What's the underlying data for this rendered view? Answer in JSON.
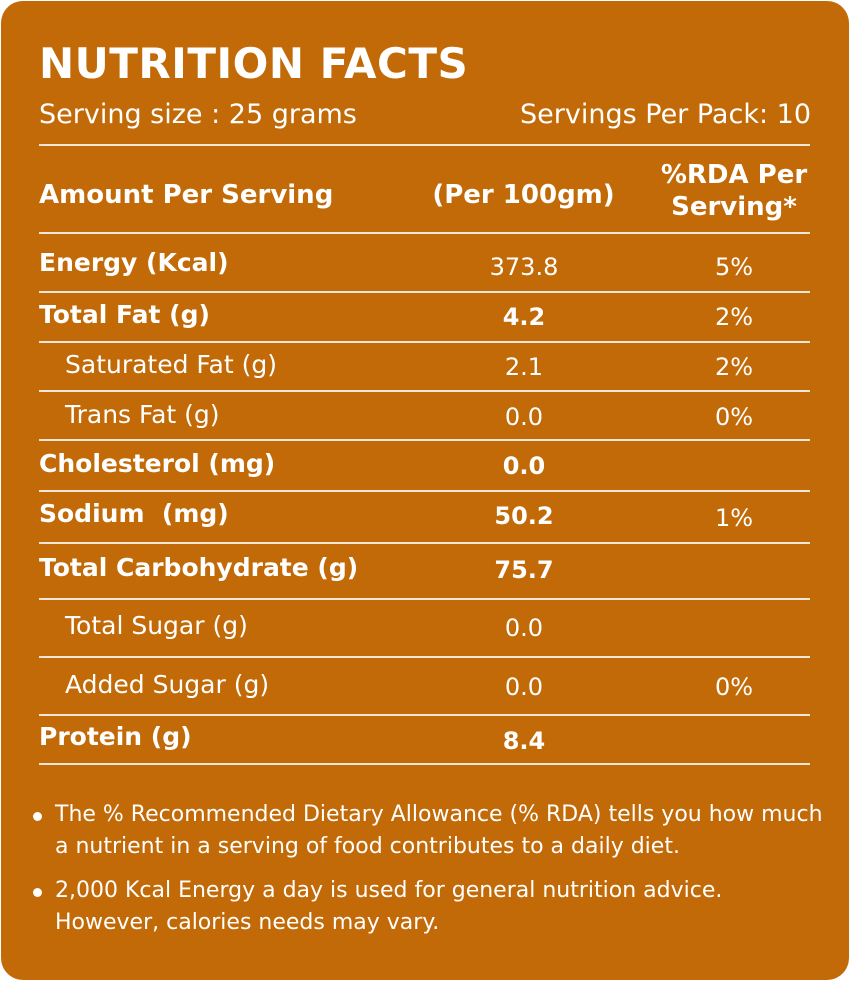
{
  "panel": {
    "title": "NUTRITION FACTS",
    "serving_size": "Serving size : 25 grams",
    "servings_per_pack": "Servings Per Pack: 10",
    "background_color": "#C26A07",
    "text_color": "#FFFFFF"
  },
  "table": {
    "headers": {
      "amount": "Amount Per Serving",
      "per100": "(Per 100gm)",
      "rda_line1": "%RDA Per",
      "rda_line2": "Serving*"
    },
    "rows": [
      {
        "name": "Energy (Kcal)",
        "value": "373.8",
        "rda": "5%"
      },
      {
        "name": "Total Fat (g)",
        "value": "4.2",
        "rda": "2%"
      },
      {
        "name": "Saturated Fat (g)",
        "value": "2.1",
        "rda": "2%"
      },
      {
        "name": "Trans Fat (g)",
        "value": "0.0",
        "rda": "0%"
      },
      {
        "name": "Cholesterol (mg)",
        "value": "0.0",
        "rda": ""
      },
      {
        "name": "Sodium  (mg)",
        "value": "50.2",
        "rda": "1%"
      },
      {
        "name": "Total Carbohydrate (g)",
        "value": "75.7",
        "rda": ""
      },
      {
        "name": "Total Sugar (g)",
        "value": "0.0",
        "rda": ""
      },
      {
        "name": "Added Sugar (g)",
        "value": "0.0",
        "rda": "0%"
      },
      {
        "name": "Protein (g)",
        "value": "8.4",
        "rda": ""
      }
    ]
  },
  "notes": [
    "The % Recommended Dietary Allowance (% RDA) tells you how much a nutrient in a serving of food contributes to a daily diet.",
    "2,000 Kcal Energy a day is used for general nutrition advice. However, calories needs may vary."
  ]
}
